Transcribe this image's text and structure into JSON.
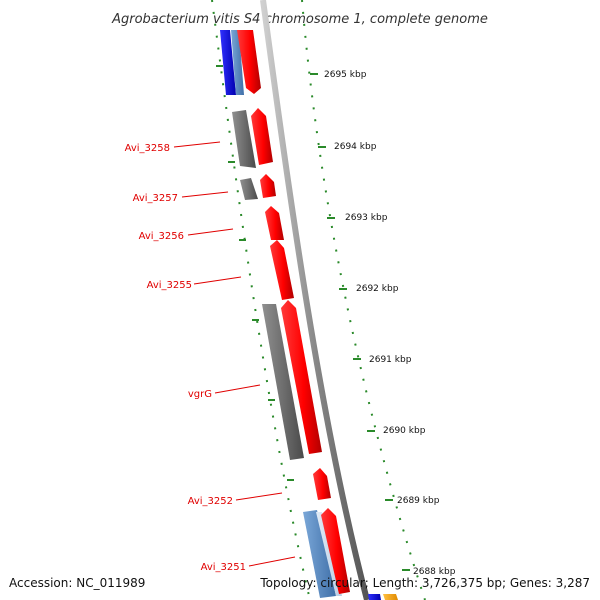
{
  "title": "Agrobacterium vitis S4 chromosome 1, complete genome",
  "footer": {
    "accession": "Accession: NC_011989",
    "summary": "Topology: circular; Length: 3,726,375 bp; Genes: 3,287"
  },
  "colors": {
    "forward": "#ff0000",
    "reverse": "#707070",
    "rna": "#0000ee",
    "pseudo": "#5f8fc6",
    "other": "#f0a000",
    "label": "#e00000",
    "tick": "#2a8a2a",
    "backbone": "#888888"
  },
  "ticks": [
    "2695 kbp",
    "2694 kbp",
    "2693 kbp",
    "2692 kbp",
    "2691 kbp",
    "2690 kbp",
    "2689 kbp",
    "2688 kbp"
  ],
  "gene_labels": [
    "Avi_3258",
    "Avi_3257",
    "Avi_3256",
    "Avi_3255",
    "vgrG",
    "Avi_3252",
    "Avi_3251"
  ]
}
